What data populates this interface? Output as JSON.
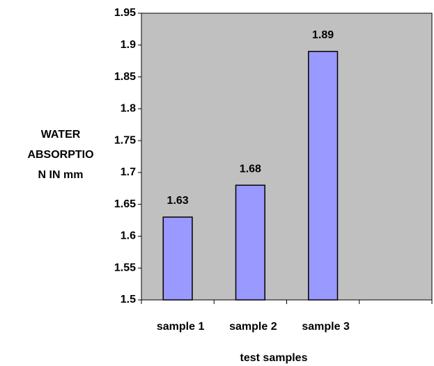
{
  "chart_data": {
    "type": "bar",
    "y_label": [
      "WATER",
      "ABSORPTIO",
      "N IN mm"
    ],
    "x_label": "test samples",
    "categories": [
      "sample 1",
      "sample 2",
      "sample 3",
      null
    ],
    "values": [
      1.63,
      1.68,
      1.89,
      null
    ],
    "color": "#9999ff",
    "ylim": [
      1.5,
      1.95
    ],
    "yticks": [
      1.5,
      1.55,
      1.6,
      1.65,
      1.7,
      1.75,
      1.8,
      1.85,
      1.9,
      1.95
    ],
    "plot_background": "#c0c0c0"
  }
}
